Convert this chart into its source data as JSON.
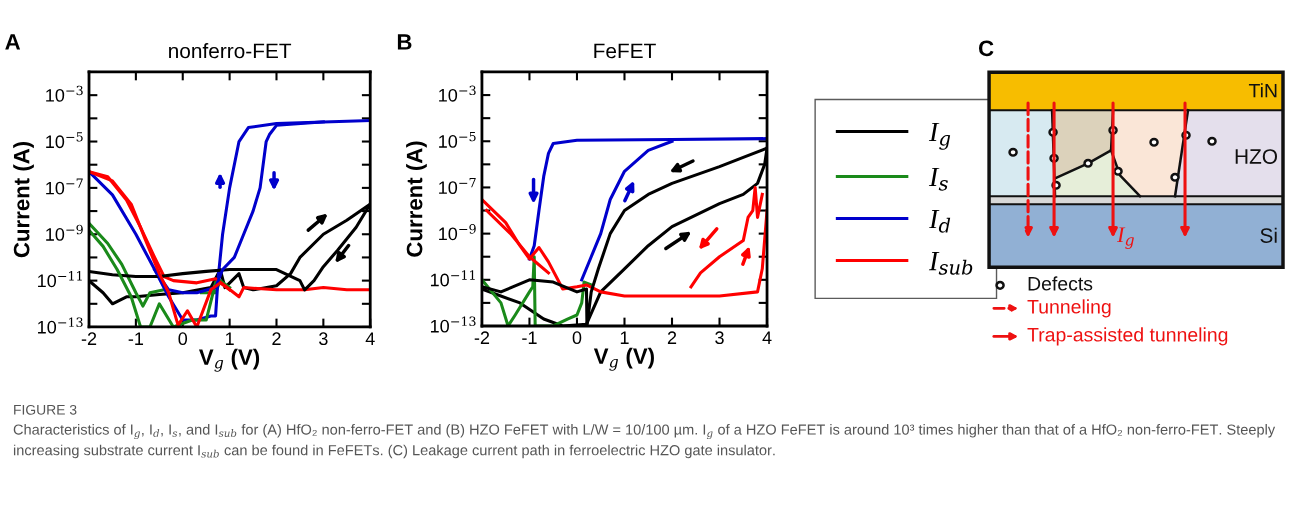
{
  "chart_data": [
    {
      "type": "line",
      "title": "nonferro-FET",
      "xlabel": "V$_{g}$ (V)",
      "ylabel": "Current (A)",
      "annotations": [
        "A"
      ],
      "log": "y",
      "xlim": [
        -2,
        4
      ],
      "xticks": [
        -2,
        -1,
        0,
        1,
        2,
        3,
        4
      ],
      "ylim": [
        1e-13,
        0.01
      ],
      "yticks": [
        {
          "value": 1e-13,
          "label": "10$^{−13}$"
        },
        {
          "value": 1e-12,
          "label": null
        },
        {
          "value": 1e-11,
          "label": "10$^{−11}$"
        },
        {
          "value": 1e-10,
          "label": null
        },
        {
          "value": 1e-09,
          "label": "10$^{−9}$"
        },
        {
          "value": 1e-08,
          "label": null
        },
        {
          "value": 1e-07,
          "label": "10$^{−7}$"
        },
        {
          "value": 1e-06,
          "label": null
        },
        {
          "value": 1e-05,
          "label": "10$^{−5}$"
        },
        {
          "value": 0.0001,
          "label": null
        },
        {
          "value": 0.001,
          "label": "10$^{−3}$"
        },
        {
          "value": 0.01,
          "label": null
        }
      ],
      "grid": false,
      "legend": false,
      "marker": "none",
      "line_style": "solid",
      "series": [
        {
          "color": "#000000",
          "x": [
            -2,
            -1.7,
            -1.5,
            -1.2,
            -1,
            -0.5,
            0,
            0.6,
            0.8,
            0.9,
            1.2,
            1.3,
            1.5,
            2,
            2.3,
            2.5,
            3,
            3.5,
            4
          ],
          "values": [
            1e-11,
            3e-12,
            1e-12,
            2e-12,
            2e-12,
            2.5e-12,
            3e-12,
            5e-12,
            3e-11,
            5e-12,
            2e-11,
            5e-12,
            4e-12,
            6e-12,
            2e-11,
            1e-10,
            1e-09,
            4e-09,
            2e-08
          ]
        },
        {
          "color": "#1a8a1a",
          "x": [
            -2,
            -1.6,
            -1.3,
            -1.0,
            -0.85,
            -0.7,
            -0.4,
            0,
            0.4,
            0.7,
            0.8,
            1.0
          ],
          "values": [
            3e-09,
            4e-10,
            5e-11,
            3e-12,
            8e-13,
            3e-12,
            4e-12,
            null,
            3e-12,
            3e-12,
            1e-11,
            5e-12
          ]
        },
        {
          "color": "#0000cc",
          "x": [
            -2,
            -1.5,
            -1,
            -0.6,
            -0.3,
            0,
            0.3,
            0.6,
            0.7,
            0.75,
            0.85,
            1.0,
            1.1,
            1.2,
            1.4,
            2,
            3,
            4
          ],
          "values": [
            5e-07,
            5e-08,
            1e-09,
            3e-11,
            2e-12,
            2e-13,
            2e-13,
            3e-13,
            3e-13,
            1e-11,
            1e-09,
            1e-07,
            1e-06,
            1e-05,
            4e-05,
            6e-05,
            7e-05,
            8e-05
          ]
        },
        {
          "color": "#ff0000",
          "x": [
            -2,
            -1.6,
            -1.2,
            -0.9,
            -0.6,
            -0.4,
            -0.2,
            0.3,
            0.7,
            0.9,
            1.2,
            1.3,
            2,
            2.6,
            3,
            3.5,
            4
          ],
          "values": [
            5e-07,
            3e-07,
            3e-08,
            2e-09,
            1e-10,
            1.5e-11,
            1e-11,
            8e-12,
            1.2e-11,
            6e-12,
            2e-12,
            5e-12,
            4e-12,
            4e-12,
            5e-12,
            4e-12,
            4e-12
          ]
        },
        {
          "color": "#000000",
          "x": [
            -2,
            -1.5,
            -1,
            -0.5,
            0,
            0.5,
            1,
            1.5,
            2,
            2.5,
            2.6,
            2.65,
            2.8,
            3,
            3.3,
            3.7,
            4
          ],
          "values": [
            2.5e-11,
            1.8e-11,
            1.5e-11,
            1.5e-11,
            2e-11,
            2.5e-11,
            3e-11,
            3e-11,
            3e-11,
            1e-11,
            4e-12,
            5e-12,
            1e-11,
            4e-11,
            2e-10,
            2e-09,
            2e-08
          ]
        },
        {
          "color": "#1a8a1a",
          "x": [
            -2,
            -1.7,
            -1.4,
            -1.1,
            -0.9,
            -0.7,
            -0.5,
            -0.2,
            0.2,
            0.5,
            0.7
          ],
          "values": [
            1.5e-09,
            3e-10,
            3e-11,
            2e-12,
            1e-13,
            1e-13,
            1e-12,
            1e-13,
            2e-13,
            2e-13,
            8e-12
          ]
        },
        {
          "color": "#0000cc",
          "x": [
            -0.6,
            -0.3,
            0,
            0.3,
            0.7,
            0.85,
            1.1,
            1.3,
            1.5,
            1.65,
            1.78,
            1.85,
            2,
            3
          ],
          "values": [
            3e-11,
            4e-12,
            3e-12,
            3e-12,
            5e-12,
            3e-11,
            1e-10,
            1e-09,
            1e-08,
            1e-07,
            1e-05,
            2e-05,
            5e-05,
            7e-05
          ]
        },
        {
          "color": "#ff0000",
          "x": [
            -2,
            -1.5,
            -1.1,
            -0.8,
            -0.5,
            -0.3,
            -0.1,
            0.1,
            0.3,
            0.6,
            0.8,
            1
          ],
          "values": [
            5e-07,
            2e-07,
            2e-08,
            6e-10,
            2e-11,
            3e-12,
            1.2e-13,
            5e-13,
            1e-13,
            4e-12,
            8e-12,
            4e-12
          ]
        }
      ]
    },
    {
      "type": "line",
      "title": "FeFET",
      "xlabel": "V$_{g}$ (V)",
      "ylabel": "Current (A)",
      "annotations": [
        "B"
      ],
      "log": "y",
      "xlim": [
        -2,
        4
      ],
      "xticks": [
        -2,
        -1,
        0,
        1,
        2,
        3,
        4
      ],
      "ylim": [
        1e-13,
        0.01
      ],
      "yticks": [
        {
          "value": 1e-13,
          "label": "10$^{−13}$"
        },
        {
          "value": 1e-12,
          "label": null
        },
        {
          "value": 1e-11,
          "label": "10$^{−11}$"
        },
        {
          "value": 1e-10,
          "label": null
        },
        {
          "value": 1e-09,
          "label": "10$^{−9}$"
        },
        {
          "value": 1e-08,
          "label": null
        },
        {
          "value": 1e-07,
          "label": "10$^{−7}$"
        },
        {
          "value": 1e-06,
          "label": null
        },
        {
          "value": 1e-05,
          "label": "10$^{−5}$"
        },
        {
          "value": 0.0001,
          "label": null
        },
        {
          "value": 0.001,
          "label": "10$^{−3}$"
        },
        {
          "value": 0.01,
          "label": null
        }
      ],
      "grid": false,
      "legend": "right",
      "marker": "none",
      "line_style": "solid",
      "series": [
        {
          "name": "I$_{g}$",
          "color": "#000000",
          "x": [
            -2,
            -1.2,
            -0.7,
            -0.3,
            0.2,
            0.5,
            1,
            1.5,
            2,
            3,
            3.5,
            3.8,
            3.95,
            4
          ],
          "values": [
            4e-12,
            1e-12,
            2e-13,
            1e-13,
            1.2e-13,
            3e-12,
            3e-11,
            3e-10,
            2e-09,
            2e-08,
            5e-08,
            1.5e-07,
            1e-06,
            5e-06
          ]
        },
        {
          "name": "I$_{s}$",
          "color": "#1a8a1a",
          "x": [
            -2,
            -1.6,
            -1.45,
            -1.3,
            -1.0,
            -0.93,
            -0.9,
            -0.88,
            -0.5,
            -0.2,
            0,
            0.1,
            0.15,
            0.3
          ],
          "values": [
            1e-11,
            1e-12,
            1e-13,
            3e-13,
            3e-12,
            5e-12,
            1e-10,
            1e-13,
            1e-13,
            2e-13,
            3e-13,
            1e-12,
            8e-12,
            6e-12
          ]
        },
        {
          "name": "I$_{d}$",
          "color": "#0000cc",
          "x": [
            -1.0,
            -0.9,
            -0.8,
            -0.7,
            -0.6,
            -0.5,
            0,
            2,
            4
          ],
          "values": [
            8e-11,
            3e-10,
            1e-08,
            3e-07,
            3e-06,
            8e-06,
            1.1e-05,
            1.2e-05,
            1.3e-05
          ]
        },
        {
          "name": "I$_{sub}$",
          "color": "#ff0000",
          "x": [
            -2,
            -1.5,
            -1.2,
            -1.0,
            -0.8,
            -0.6,
            -0.3,
            0,
            0.2,
            0.5,
            1,
            2,
            3,
            3.8,
            3.9,
            4
          ],
          "values": [
            3e-08,
            3e-09,
            3e-10,
            8e-11,
            2.5e-10,
            6e-11,
            4e-12,
            5e-12,
            6e-12,
            3e-12,
            2e-12,
            2e-12,
            2e-12,
            3e-12,
            3e-11,
            1e-08
          ]
        },
        {
          "color": "#000000",
          "x": [
            -2,
            -1.6,
            -1,
            -0.5,
            0,
            0.2,
            0.21,
            0.3,
            0.45,
            0.7,
            1,
            1.5,
            2,
            3,
            3.5,
            4
          ],
          "values": [
            5e-12,
            3e-12,
            1e-11,
            8e-12,
            3e-12,
            4e-12,
            1e-13,
            3e-12,
            3e-11,
            1e-09,
            1e-08,
            5e-08,
            1.5e-07,
            8e-07,
            2e-06,
            5e-06
          ]
        },
        {
          "color": "#0000cc",
          "x": [
            0.1,
            0.3,
            0.5,
            0.7,
            1,
            1.5,
            2
          ],
          "values": [
            1e-11,
            1e-10,
            1e-09,
            3e-08,
            5e-07,
            4e-06,
            1e-05
          ]
        },
        {
          "color": "#ff0000",
          "x": [
            -1.9,
            -1.4,
            -1,
            -0.6
          ],
          "values": [
            1e-08,
            1e-09,
            1e-10,
            2e-11
          ]
        },
        {
          "color": "#ff0000",
          "x": [
            2.4,
            2.6,
            3,
            3.5,
            3.6,
            3.7,
            3.75,
            3.8,
            3.9
          ],
          "values": [
            5e-12,
            2e-11,
            1e-10,
            5e-10,
            5e-09,
            1e-08,
            1e-07,
            5e-09,
            5e-08
          ]
        }
      ]
    },
    {
      "type": "other",
      "annotations": [
        "C",
        "TiN",
        "HZO",
        "Si",
        "I$_{g}$",
        "Defects",
        "Tunneling",
        "Trap-assisted tunneling",
        "FIGURE 3",
        "Characteristics of I$_{g}$, I$_{d}$, I$_{s}$, and I$_{sub}$ for (A) HfO₂ non-ferro-FET and (B) HZO FeFET with L/W = 10/100 µm. I$_{g}$ of a HZO FeFET is around 10³ times higher than that of a HfO₂ non-ferro-FET. Steeply increasing substrate current I$_{sub}$ can be found in FeFETs. (C) Leakage current path in ferroelectric HZO gate insulator."
      ]
    }
  ]
}
